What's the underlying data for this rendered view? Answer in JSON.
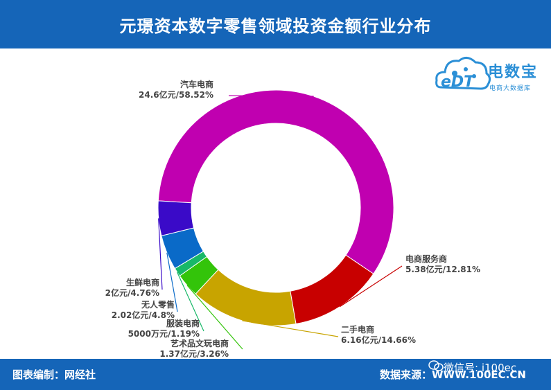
{
  "header": {
    "title": "元璟资本数字零售领域投资金额行业分布"
  },
  "logo": {
    "name": "电数宝",
    "tagline": "电商大数据库",
    "mark": "eDT"
  },
  "footer": {
    "left": "图表编制：网经社",
    "right": "数据来源：WWW.100EC.CN",
    "watermark": "微信号: i100ec"
  },
  "colors": {
    "brand_blue": "#1565b8"
  },
  "chart_data": {
    "type": "pie",
    "style": "donut",
    "title": "元璟资本数字零售领域投资金额行业分布",
    "slices": [
      {
        "name": "汽车电商",
        "amount": "24.6亿元",
        "percent": 58.52,
        "label": "24.6亿元/58.52%",
        "color": "#c000b0"
      },
      {
        "name": "电商服务商",
        "amount": "5.38亿元",
        "percent": 12.81,
        "label": "5.38亿元/12.81%",
        "color": "#c80000"
      },
      {
        "name": "二手电商",
        "amount": "6.16亿元",
        "percent": 14.66,
        "label": "6.16亿元/14.66%",
        "color": "#c8a400"
      },
      {
        "name": "艺术品文玩电商",
        "amount": "1.37亿元",
        "percent": 3.26,
        "label": "1.37亿元/3.26%",
        "color": "#33c40a"
      },
      {
        "name": "服装电商",
        "amount": "5000万元",
        "percent": 1.19,
        "label": "5000万元/1.19%",
        "color": "#18b868"
      },
      {
        "name": "无人零售",
        "amount": "2.02亿元",
        "percent": 4.8,
        "label": "2.02亿元/4.8%",
        "color": "#0a6ac8"
      },
      {
        "name": "生鲜电商",
        "amount": "2亿元",
        "percent": 4.76,
        "label": "2亿元/4.76%",
        "color": "#3a0ac8"
      }
    ]
  }
}
